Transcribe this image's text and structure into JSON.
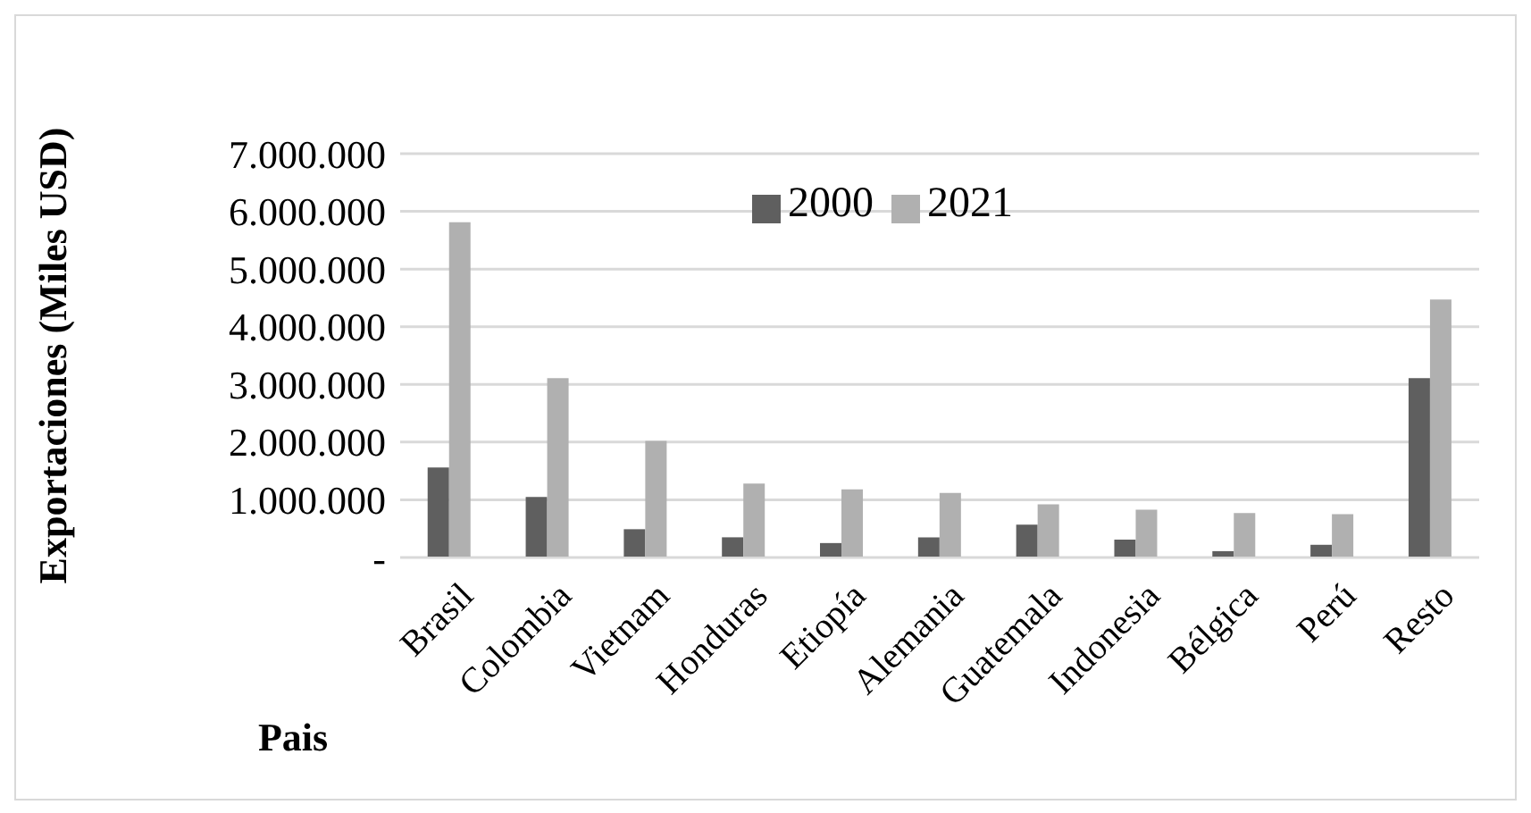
{
  "chart_data": {
    "type": "bar",
    "xlabel": "Pais",
    "ylabel": "Exportaciones (Miles USD)",
    "categories": [
      "Brasil",
      "Colombia",
      "Vietnam",
      "Honduras",
      "Etiopía",
      "Alemania",
      "Guatemala",
      "Indonesia",
      "Bélgica",
      "Perú",
      "Resto"
    ],
    "series": [
      {
        "name": "2000",
        "color": "#5f5f5f",
        "values": [
          1560000,
          1050000,
          490000,
          350000,
          250000,
          350000,
          570000,
          310000,
          110000,
          220000,
          3110000
        ]
      },
      {
        "name": "2021",
        "color": "#b0b0b0",
        "values": [
          5810000,
          3110000,
          2020000,
          1280000,
          1180000,
          1120000,
          920000,
          830000,
          770000,
          750000,
          4470000
        ]
      }
    ],
    "ylim": [
      0,
      7000000
    ],
    "yticks": [
      {
        "value": 0,
        "label": "-"
      },
      {
        "value": 1000000,
        "label": "1.000.000"
      },
      {
        "value": 2000000,
        "label": "2.000.000"
      },
      {
        "value": 3000000,
        "label": "3.000.000"
      },
      {
        "value": 4000000,
        "label": "4.000.000"
      },
      {
        "value": 5000000,
        "label": "5.000.000"
      },
      {
        "value": 6000000,
        "label": "6.000.000"
      },
      {
        "value": 7000000,
        "label": "7.000.000"
      }
    ],
    "grid": "y",
    "legend": "top"
  }
}
